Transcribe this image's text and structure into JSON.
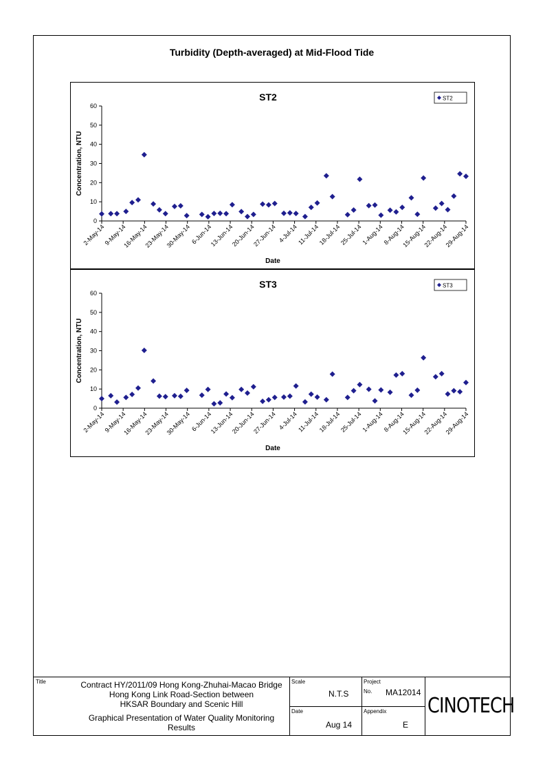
{
  "page_title": "Turbidity (Depth-averaged) at Mid-Flood Tide",
  "chart_data": [
    {
      "type": "scatter",
      "title": "ST2",
      "xlabel": "Date",
      "ylabel": "Concentration, NTU",
      "ylim": [
        0,
        60
      ],
      "yticks": [
        "0",
        "10",
        "20",
        "30",
        "40",
        "50",
        "60"
      ],
      "xlim": [
        "2014-05-02",
        "2014-08-29"
      ],
      "xticks": [
        "2-May-14",
        "9-May-14",
        "16-May-14",
        "23-May-14",
        "30-May-14",
        "6-Jun-14",
        "13-Jun-14",
        "20-Jun-14",
        "27-Jun-14",
        "4-Jul-14",
        "11-Jul-14",
        "18-Jul-14",
        "25-Jul-14",
        "1-Aug-14",
        "8-Aug-14",
        "15-Aug-14",
        "22-Aug-14",
        "29-Aug-14"
      ],
      "legend_position": "top-right",
      "grid": false,
      "series": [
        {
          "name": "ST2",
          "color": "#1f1f8f",
          "marker": "diamond",
          "points": [
            {
              "x": "2014-05-02",
              "y": 3.7
            },
            {
              "x": "2014-05-05",
              "y": 3.8
            },
            {
              "x": "2014-05-07",
              "y": 3.8
            },
            {
              "x": "2014-05-10",
              "y": 5.0
            },
            {
              "x": "2014-05-12",
              "y": 9.6
            },
            {
              "x": "2014-05-14",
              "y": 11.0
            },
            {
              "x": "2014-05-16",
              "y": 34.6
            },
            {
              "x": "2014-05-19",
              "y": 8.9
            },
            {
              "x": "2014-05-21",
              "y": 5.8
            },
            {
              "x": "2014-05-23",
              "y": 3.8
            },
            {
              "x": "2014-05-26",
              "y": 7.6
            },
            {
              "x": "2014-05-28",
              "y": 7.9
            },
            {
              "x": "2014-05-30",
              "y": 2.8
            },
            {
              "x": "2014-06-04",
              "y": 3.4
            },
            {
              "x": "2014-06-06",
              "y": 2.2
            },
            {
              "x": "2014-06-08",
              "y": 3.9
            },
            {
              "x": "2014-06-10",
              "y": 4.0
            },
            {
              "x": "2014-06-12",
              "y": 3.8
            },
            {
              "x": "2014-06-14",
              "y": 8.5
            },
            {
              "x": "2014-06-17",
              "y": 4.9
            },
            {
              "x": "2014-06-19",
              "y": 2.3
            },
            {
              "x": "2014-06-21",
              "y": 3.4
            },
            {
              "x": "2014-06-24",
              "y": 8.8
            },
            {
              "x": "2014-06-26",
              "y": 8.4
            },
            {
              "x": "2014-06-28",
              "y": 9.1
            },
            {
              "x": "2014-07-01",
              "y": 4.0
            },
            {
              "x": "2014-07-03",
              "y": 4.2
            },
            {
              "x": "2014-07-05",
              "y": 3.9
            },
            {
              "x": "2014-07-08",
              "y": 2.3
            },
            {
              "x": "2014-07-10",
              "y": 7.1
            },
            {
              "x": "2014-07-12",
              "y": 9.4
            },
            {
              "x": "2014-07-15",
              "y": 23.6
            },
            {
              "x": "2014-07-17",
              "y": 12.7
            },
            {
              "x": "2014-07-22",
              "y": 3.3
            },
            {
              "x": "2014-07-24",
              "y": 5.7
            },
            {
              "x": "2014-07-26",
              "y": 21.8
            },
            {
              "x": "2014-07-29",
              "y": 8.0
            },
            {
              "x": "2014-07-31",
              "y": 8.3
            },
            {
              "x": "2014-08-02",
              "y": 3.0
            },
            {
              "x": "2014-08-05",
              "y": 5.6
            },
            {
              "x": "2014-08-07",
              "y": 4.7
            },
            {
              "x": "2014-08-09",
              "y": 7.1
            },
            {
              "x": "2014-08-12",
              "y": 12.1
            },
            {
              "x": "2014-08-14",
              "y": 3.5
            },
            {
              "x": "2014-08-16",
              "y": 22.4
            },
            {
              "x": "2014-08-20",
              "y": 6.7
            },
            {
              "x": "2014-08-22",
              "y": 9.1
            },
            {
              "x": "2014-08-24",
              "y": 5.9
            },
            {
              "x": "2014-08-26",
              "y": 13.0
            },
            {
              "x": "2014-08-28",
              "y": 24.6
            },
            {
              "x": "2014-08-30",
              "y": 23.3
            }
          ]
        }
      ]
    },
    {
      "type": "scatter",
      "title": "ST3",
      "xlabel": "Date",
      "ylabel": "Concentration, NTU",
      "ylim": [
        0,
        60
      ],
      "yticks": [
        "0",
        "10",
        "20",
        "30",
        "40",
        "50",
        "60"
      ],
      "xlim": [
        "2014-05-02",
        "2014-08-29"
      ],
      "xticks": [
        "2-May-14",
        "9-May-14",
        "16-May-14",
        "23-May-14",
        "30-May-14",
        "6-Jun-14",
        "13-Jun-14",
        "20-Jun-14",
        "27-Jun-14",
        "4-Jul-14",
        "11-Jul-14",
        "18-Jul-14",
        "25-Jul-14",
        "1-Aug-14",
        "8-Aug-14",
        "15-Aug-14",
        "22-Aug-14",
        "29-Aug-14"
      ],
      "legend_position": "top-right",
      "grid": false,
      "series": [
        {
          "name": "ST3",
          "color": "#1f1f8f",
          "marker": "diamond",
          "points": [
            {
              "x": "2014-05-02",
              "y": 5.0
            },
            {
              "x": "2014-05-05",
              "y": 6.5
            },
            {
              "x": "2014-05-07",
              "y": 3.2
            },
            {
              "x": "2014-05-10",
              "y": 5.6
            },
            {
              "x": "2014-05-12",
              "y": 7.2
            },
            {
              "x": "2014-05-14",
              "y": 10.5
            },
            {
              "x": "2014-05-16",
              "y": 30.2
            },
            {
              "x": "2014-05-19",
              "y": 14.2
            },
            {
              "x": "2014-05-21",
              "y": 6.3
            },
            {
              "x": "2014-05-23",
              "y": 6.0
            },
            {
              "x": "2014-05-26",
              "y": 6.5
            },
            {
              "x": "2014-05-28",
              "y": 6.2
            },
            {
              "x": "2014-05-30",
              "y": 9.3
            },
            {
              "x": "2014-06-04",
              "y": 6.8
            },
            {
              "x": "2014-06-06",
              "y": 9.8
            },
            {
              "x": "2014-06-08",
              "y": 2.3
            },
            {
              "x": "2014-06-10",
              "y": 2.8
            },
            {
              "x": "2014-06-12",
              "y": 7.4
            },
            {
              "x": "2014-06-14",
              "y": 5.5
            },
            {
              "x": "2014-06-17",
              "y": 9.8
            },
            {
              "x": "2014-06-19",
              "y": 7.9
            },
            {
              "x": "2014-06-21",
              "y": 11.2
            },
            {
              "x": "2014-06-24",
              "y": 3.6
            },
            {
              "x": "2014-06-26",
              "y": 4.4
            },
            {
              "x": "2014-06-28",
              "y": 5.6
            },
            {
              "x": "2014-07-01",
              "y": 5.8
            },
            {
              "x": "2014-07-03",
              "y": 6.3
            },
            {
              "x": "2014-07-05",
              "y": 11.6
            },
            {
              "x": "2014-07-08",
              "y": 3.3
            },
            {
              "x": "2014-07-10",
              "y": 7.3
            },
            {
              "x": "2014-07-12",
              "y": 5.8
            },
            {
              "x": "2014-07-15",
              "y": 4.4
            },
            {
              "x": "2014-07-17",
              "y": 17.8
            },
            {
              "x": "2014-07-22",
              "y": 5.6
            },
            {
              "x": "2014-07-24",
              "y": 9.1
            },
            {
              "x": "2014-07-26",
              "y": 12.3
            },
            {
              "x": "2014-07-29",
              "y": 9.9
            },
            {
              "x": "2014-07-31",
              "y": 3.8
            },
            {
              "x": "2014-08-02",
              "y": 9.5
            },
            {
              "x": "2014-08-05",
              "y": 8.3
            },
            {
              "x": "2014-08-07",
              "y": 17.3
            },
            {
              "x": "2014-08-09",
              "y": 18.0
            },
            {
              "x": "2014-08-12",
              "y": 6.8
            },
            {
              "x": "2014-08-14",
              "y": 9.4
            },
            {
              "x": "2014-08-16",
              "y": 26.3
            },
            {
              "x": "2014-08-20",
              "y": 16.4
            },
            {
              "x": "2014-08-22",
              "y": 18.0
            },
            {
              "x": "2014-08-24",
              "y": 7.4
            },
            {
              "x": "2014-08-26",
              "y": 9.1
            },
            {
              "x": "2014-08-28",
              "y": 8.6
            },
            {
              "x": "2014-08-30",
              "y": 13.4
            }
          ]
        }
      ]
    }
  ],
  "footer": {
    "title_label": "Title",
    "title_lines": [
      "Contract HY/2011/09 Hong Kong-Zhuhai-Macao Bridge",
      "Hong Kong Link Road-Section between",
      "HKSAR Boundary and Scenic Hill"
    ],
    "subtitle_lines": [
      "Graphical Presentation of Water Quality Monitoring",
      "Results"
    ],
    "scale_label": "Scale",
    "scale_value": "N.T.S",
    "date_label": "Date",
    "date_value": "Aug 14",
    "project_label": "Project",
    "no_label": "No.",
    "project_value": "MA12014",
    "appendix_label": "Appendix",
    "appendix_value": "E",
    "logo_text": "CINOTECH"
  }
}
